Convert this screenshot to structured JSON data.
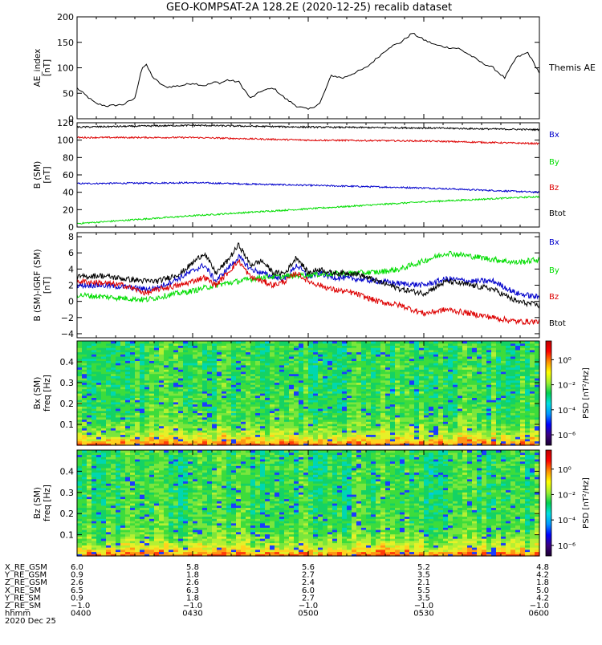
{
  "chart_data": {
    "title": "GEO-KOMPSAT-2A 128.2E (2020-12-25) recalib dataset",
    "x_range_hours": [
      4.0,
      6.0
    ],
    "panels": [
      {
        "id": "ae",
        "type": "line",
        "ylabel": "AE_index\n[nT]",
        "ylim": [
          0,
          200
        ],
        "yticks": [
          0,
          50,
          100,
          150,
          200
        ],
        "series": [
          {
            "name": "Themis AE",
            "color": "#000000",
            "x": [
              4.0,
              4.08,
              4.13,
              4.2,
              4.25,
              4.28,
              4.3,
              4.33,
              4.38,
              4.45,
              4.5,
              4.55,
              4.6,
              4.62,
              4.65,
              4.7,
              4.75,
              4.8,
              4.85,
              4.88,
              4.9,
              4.95,
              5.0,
              5.05,
              5.1,
              5.15,
              5.2,
              5.25,
              5.3,
              5.35,
              5.4,
              5.45,
              5.5,
              5.55,
              5.6,
              5.65,
              5.7,
              5.75,
              5.8,
              5.85,
              5.9,
              5.95,
              6.0
            ],
            "values": [
              60,
              30,
              25,
              28,
              40,
              100,
              105,
              80,
              62,
              65,
              70,
              65,
              72,
              70,
              76,
              72,
              40,
              55,
              60,
              48,
              40,
              25,
              18,
              30,
              85,
              80,
              90,
              100,
              120,
              140,
              150,
              168,
              155,
              145,
              140,
              138,
              125,
              110,
              100,
              80,
              120,
              130,
              90
            ]
          }
        ]
      },
      {
        "id": "bsm",
        "type": "line",
        "ylabel": "B (SM)\n[nT]",
        "ylim": [
          0,
          120
        ],
        "yticks": [
          0,
          20,
          40,
          60,
          80,
          100,
          120
        ],
        "series": [
          {
            "name": "Bx",
            "color": "#0000cc",
            "x": [
              4.0,
              4.5,
              5.0,
              5.5,
              6.0
            ],
            "values": [
              50,
              51,
              48,
              45,
              40
            ]
          },
          {
            "name": "By",
            "color": "#00dd00",
            "x": [
              4.0,
              4.5,
              5.0,
              5.5,
              6.0
            ],
            "values": [
              4,
              13,
              21,
              29,
              35
            ]
          },
          {
            "name": "Bz",
            "color": "#dd0000",
            "x": [
              4.0,
              4.5,
              5.0,
              5.5,
              6.0
            ],
            "values": [
              103,
              103,
              100,
              99,
              96
            ]
          },
          {
            "name": "Btot",
            "color": "#000000",
            "x": [
              4.0,
              4.5,
              5.0,
              5.5,
              6.0
            ],
            "values": [
              115,
              117,
              115,
              114,
              112
            ]
          }
        ]
      },
      {
        "id": "bigrf",
        "type": "line",
        "ylabel": "B (SM)-IGRF (SM)\n[nT]",
        "ylim": [
          -4.5,
          8.5
        ],
        "yticks": [
          -4,
          -2,
          0,
          2,
          4,
          6,
          8
        ],
        "series": [
          {
            "name": "Bx",
            "color": "#0000cc",
            "x": [
              4.0,
              4.1,
              4.2,
              4.3,
              4.35,
              4.45,
              4.55,
              4.6,
              4.65,
              4.7,
              4.75,
              4.8,
              4.85,
              4.9,
              4.95,
              5.0,
              5.05,
              5.1,
              5.2,
              5.3,
              5.4,
              5.5,
              5.6,
              5.7,
              5.8,
              5.9,
              6.0
            ],
            "values": [
              2.0,
              2.0,
              1.8,
              1.5,
              1.7,
              3.0,
              4.5,
              2.5,
              4.0,
              5.5,
              4.0,
              3.5,
              3.0,
              2.8,
              4.5,
              3.0,
              3.5,
              3.0,
              2.8,
              2.5,
              2.2,
              2.0,
              2.8,
              2.5,
              2.5,
              1.0,
              0.5
            ]
          },
          {
            "name": "By",
            "color": "#00dd00",
            "x": [
              4.0,
              4.15,
              4.3,
              4.4,
              4.5,
              4.6,
              4.7,
              4.8,
              4.9,
              5.0,
              5.1,
              5.2,
              5.3,
              5.4,
              5.5,
              5.6,
              5.7,
              5.8,
              5.9,
              6.0
            ],
            "values": [
              0.8,
              0.5,
              0.2,
              0.8,
              1.3,
              2.0,
              2.5,
              3.0,
              3.1,
              3.3,
              3.4,
              3.5,
              3.6,
              4.0,
              5.0,
              6.0,
              5.6,
              5.2,
              4.8,
              5.2
            ]
          },
          {
            "name": "Bz",
            "color": "#dd0000",
            "x": [
              4.0,
              4.1,
              4.2,
              4.3,
              4.35,
              4.45,
              4.55,
              4.6,
              4.65,
              4.7,
              4.75,
              4.8,
              4.85,
              4.9,
              4.95,
              5.0,
              5.05,
              5.1,
              5.2,
              5.3,
              5.4,
              5.5,
              5.6,
              5.7,
              5.8,
              5.9,
              6.0
            ],
            "values": [
              2.5,
              2.3,
              2.0,
              1.0,
              1.5,
              2.0,
              3.0,
              2.0,
              3.5,
              5.0,
              3.0,
              2.5,
              2.0,
              2.5,
              3.5,
              2.5,
              2.0,
              1.5,
              1.0,
              0.0,
              -0.5,
              -1.5,
              -1.0,
              -1.5,
              -2.0,
              -2.5,
              -2.5
            ]
          },
          {
            "name": "Btot",
            "color": "#000000",
            "x": [
              4.0,
              4.1,
              4.2,
              4.3,
              4.35,
              4.45,
              4.55,
              4.6,
              4.65,
              4.7,
              4.75,
              4.8,
              4.85,
              4.9,
              4.95,
              5.0,
              5.05,
              5.1,
              5.2,
              5.3,
              5.4,
              5.5,
              5.6,
              5.7,
              5.8,
              5.9,
              6.0
            ],
            "values": [
              3.0,
              3.2,
              2.8,
              2.5,
              2.5,
              3.5,
              6.0,
              3.5,
              5.0,
              7.0,
              4.5,
              5.0,
              3.5,
              3.5,
              5.5,
              3.5,
              4.0,
              3.5,
              3.5,
              2.5,
              1.5,
              1.0,
              2.5,
              2.0,
              1.5,
              0.0,
              -0.5
            ]
          }
        ]
      },
      {
        "id": "spec_bx",
        "type": "heatmap",
        "ylabel": "Bx (SM)\nfreq [Hz]",
        "ylim": [
          0.0,
          0.5
        ],
        "yticks": [
          0.1,
          0.2,
          0.3,
          0.4
        ],
        "colorbar_label": "PSD [nT²/Hz]",
        "colorbar_ticks": [
          "10⁰",
          "10⁻²",
          "10⁻⁴",
          "10⁻⁶"
        ]
      },
      {
        "id": "spec_bz",
        "type": "heatmap",
        "ylabel": "Bz (SM)\nfreq [Hz]",
        "ylim": [
          0.0,
          0.5
        ],
        "yticks": [
          0.1,
          0.2,
          0.3,
          0.4
        ],
        "colorbar_label": "PSD [nT²/Hz]",
        "colorbar_ticks": [
          "10⁰",
          "10⁻²",
          "10⁻⁴",
          "10⁻⁶"
        ]
      }
    ],
    "ephemeris": {
      "row_labels": [
        "X_RE_GSM",
        "Y_RE_GSM",
        "Z_RE_GSM",
        "X_RE_SM",
        "Y_RE_SM",
        "Z_RE_SM",
        "hhmm"
      ],
      "columns": [
        [
          "6.0",
          "0.9",
          "2.6",
          "6.5",
          "0.9",
          "−1.0",
          "0400"
        ],
        [
          "5.8",
          "1.8",
          "2.6",
          "6.3",
          "1.8",
          "−1.0",
          "0430"
        ],
        [
          "5.6",
          "2.7",
          "2.4",
          "6.0",
          "2.7",
          "−1.0",
          "0500"
        ],
        [
          "5.2",
          "3.5",
          "2.1",
          "5.5",
          "3.5",
          "−1.0",
          "0530"
        ],
        [
          "4.8",
          "4.2",
          "1.8",
          "5.0",
          "4.2",
          "−1.0",
          "0600"
        ]
      ],
      "date": "2020 Dec 25"
    }
  }
}
